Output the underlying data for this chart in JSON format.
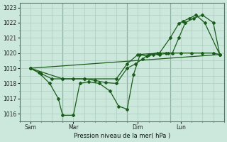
{
  "background_color": "#cce8dc",
  "grid_color_major": "#aaccbb",
  "grid_color_minor": "#bbd8cc",
  "line_color": "#1a5c1a",
  "ylabel": "Pression niveau de la mer( hPa )",
  "ylim": [
    1015.5,
    1023.3
  ],
  "yticks": [
    1016,
    1017,
    1018,
    1019,
    1020,
    1021,
    1022,
    1023
  ],
  "xlim": [
    0,
    9.5
  ],
  "x_tick_labels": [
    "Sam",
    "Mar",
    "Dim",
    "Lun"
  ],
  "x_tick_positions": [
    0.5,
    2.5,
    5.5,
    7.5
  ],
  "vline_positions": [
    2.0,
    5.0,
    7.0
  ],
  "series1_x": [
    0.5,
    0.9,
    1.4,
    1.8,
    2.0,
    2.5,
    2.8,
    3.2,
    3.7,
    4.2,
    4.6,
    5.0,
    5.3,
    5.6,
    5.9,
    6.2,
    6.5,
    6.9,
    7.1,
    7.4,
    7.7,
    8.1,
    8.5,
    9.0,
    9.3
  ],
  "series1_y": [
    1019.0,
    1018.7,
    1018.0,
    1017.0,
    1015.9,
    1015.9,
    1018.0,
    1018.1,
    1018.0,
    1017.5,
    1016.5,
    1016.3,
    1018.6,
    1019.9,
    1019.8,
    1019.9,
    1019.9,
    1020.0,
    1020.0,
    1021.0,
    1022.0,
    1022.3,
    1022.5,
    1022.0,
    1019.9
  ],
  "series2_x": [
    0.5,
    1.0,
    1.5,
    2.0,
    2.5,
    3.0,
    3.5,
    4.0,
    4.5,
    5.0,
    5.4,
    5.7,
    6.0,
    6.4,
    6.8,
    7.1,
    7.5,
    8.0,
    8.5,
    9.0,
    9.3
  ],
  "series2_y": [
    1019.0,
    1018.65,
    1018.3,
    1018.3,
    1018.3,
    1018.3,
    1018.2,
    1018.05,
    1018.0,
    1019.0,
    1019.3,
    1019.6,
    1019.9,
    1020.0,
    1020.0,
    1020.0,
    1020.0,
    1020.0,
    1020.0,
    1020.0,
    1019.9
  ],
  "series3_x": [
    0.5,
    2.0,
    3.0,
    4.5,
    5.0,
    5.5,
    6.5,
    7.0,
    7.4,
    7.6,
    7.9,
    8.2,
    8.6,
    9.3
  ],
  "series3_y": [
    1019.0,
    1018.3,
    1018.3,
    1018.3,
    1019.3,
    1019.9,
    1020.0,
    1021.0,
    1021.95,
    1022.1,
    1022.3,
    1022.5,
    1022.0,
    1019.9
  ],
  "series4_x": [
    0.5,
    9.3
  ],
  "series4_y": [
    1019.0,
    1019.9
  ],
  "marker": "D",
  "markersize": 2.0,
  "linewidth": 0.9
}
